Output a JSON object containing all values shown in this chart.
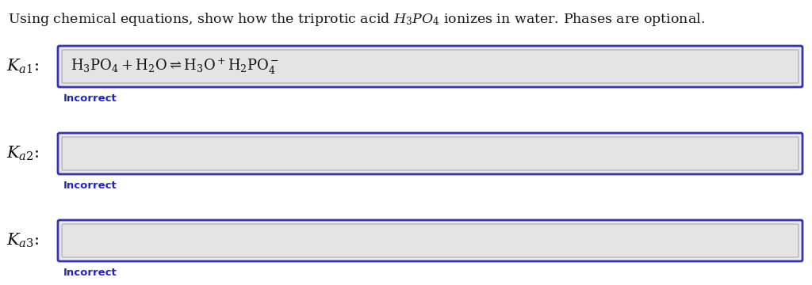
{
  "title": "Using chemical equations, show how the triprotic acid $H_3PO_4$ ionizes in water. Phases are optional.",
  "title_fontsize": 12.5,
  "title_color": "#1a1a1a",
  "background_color": "#ffffff",
  "box_outer_bg": "#ebebeb",
  "box_border_color": "#3333bb",
  "box_inner_bg": "#e4e4e4",
  "incorrect_color": "#2222cc",
  "incorrect_text": "Incorrect",
  "incorrect_fontsize": 9.5,
  "label_fontsize": 15,
  "eq_fontsize": 13,
  "labels": [
    "$K_{a1}$:",
    "$K_{a2}$:",
    "$K_{a3}$:"
  ],
  "equation1": "$\\mathrm{H_3PO_4 + H_2O \\rightleftharpoons H_3O^+H_2PO_4^-}$"
}
